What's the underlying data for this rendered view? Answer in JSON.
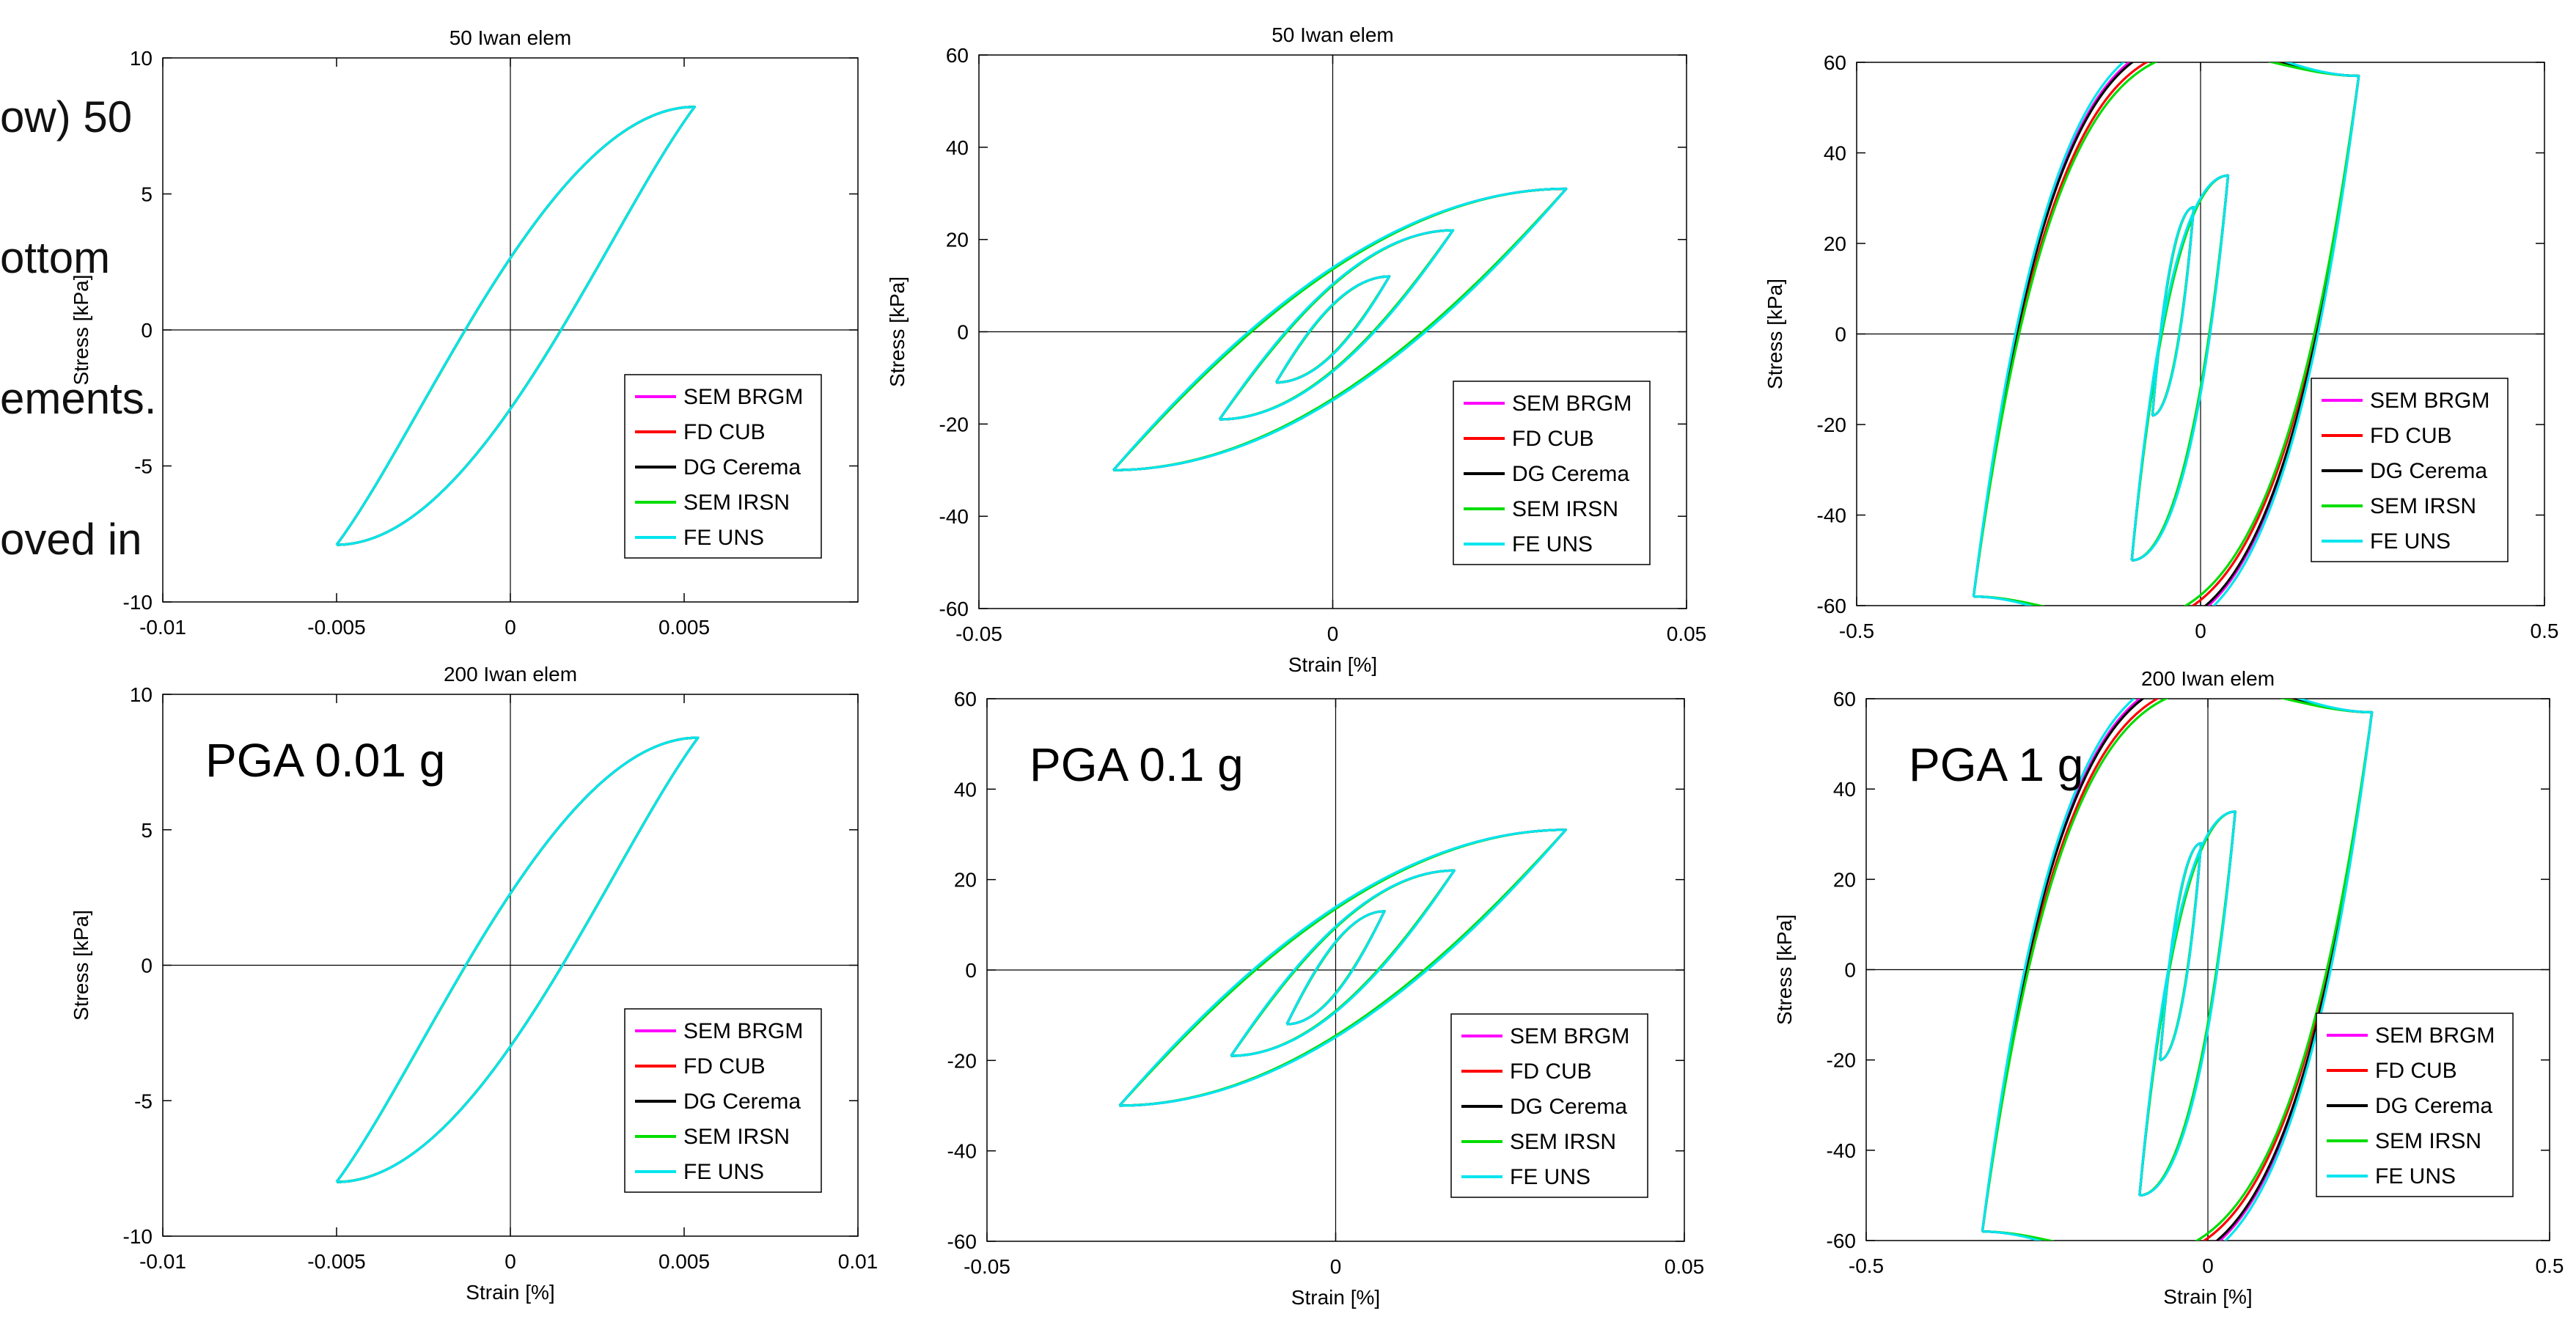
{
  "overlay_text": [
    "ow) 50",
    "ottom",
    "ements.",
    "oved in"
  ],
  "colors": {
    "SEM BRGM": "#ff00ff",
    "FD CUB": "#ff0000",
    "DG Cerema": "#000000",
    "SEM IRSN": "#00dd00",
    "FE UNS": "#00e5ee"
  },
  "legend_entries": [
    "SEM BRGM",
    "FD CUB",
    "DG Cerema",
    "SEM IRSN",
    "FE UNS"
  ],
  "chart_data": [
    {
      "id": "r1c1",
      "type": "line",
      "title": "50 Iwan elem",
      "xlabel": "",
      "ylabel": "Stress [kPa]",
      "annotation": "",
      "xlim": [
        -0.01,
        0.01
      ],
      "ylim": [
        -10,
        10
      ],
      "xticks": [
        -0.01,
        -0.005,
        0,
        0.005
      ],
      "xtick_labels": [
        "-0.01",
        "-0.005",
        "0",
        "0.005"
      ],
      "yticks": [
        -10,
        -5,
        0,
        5,
        10
      ],
      "ytick_labels": [
        "-10",
        "-5",
        "0",
        "5",
        "10"
      ],
      "grid": false,
      "legend_placement": "lower-right",
      "loops": [
        {
          "peak": [
            0.0053,
            8.2
          ],
          "trough": [
            -0.005,
            -7.9
          ],
          "bulge": 0.25
        }
      ]
    },
    {
      "id": "r1c2",
      "type": "line",
      "title": "50 Iwan elem",
      "xlabel": "Strain [%]",
      "ylabel": "Stress [kPa]",
      "annotation": "",
      "xlim": [
        -0.05,
        0.05
      ],
      "ylim": [
        -60,
        60
      ],
      "xticks": [
        -0.05,
        0,
        0.05
      ],
      "xtick_labels": [
        "-0.05",
        "0",
        "0.05"
      ],
      "yticks": [
        -60,
        -40,
        -20,
        0,
        20,
        40,
        60
      ],
      "ytick_labels": [
        "-60",
        "-40",
        "-20",
        "0",
        "20",
        "40",
        "60"
      ],
      "grid": false,
      "legend_placement": "lower-right",
      "loops": [
        {
          "peak": [
            0.033,
            31
          ],
          "trough": [
            -0.031,
            -30
          ],
          "bulge": 8
        },
        {
          "peak": [
            0.017,
            22
          ],
          "trough": [
            -0.016,
            -19
          ],
          "bulge": 5
        },
        {
          "peak": [
            0.008,
            12
          ],
          "trough": [
            -0.008,
            -11
          ],
          "bulge": 3
        }
      ]
    },
    {
      "id": "r1c3",
      "type": "line",
      "title": "",
      "xlabel": "",
      "ylabel": "Stress [kPa]",
      "annotation": "",
      "xlim": [
        -0.5,
        0.5
      ],
      "ylim": [
        -60,
        60
      ],
      "xticks": [
        -0.5,
        0,
        0.5
      ],
      "xtick_labels": [
        "-0.5",
        "0",
        "0.5"
      ],
      "yticks": [
        -60,
        -40,
        -20,
        0,
        20,
        40,
        60
      ],
      "ytick_labels": [
        "-60",
        "-40",
        "-20",
        "0",
        "20",
        "40",
        "60"
      ],
      "grid": false,
      "legend_placement": "lower-right",
      "loops": [
        {
          "peak": [
            0.23,
            57
          ],
          "trough": [
            -0.33,
            -58
          ],
          "bulge": 85
        },
        {
          "peak": [
            0.04,
            35
          ],
          "trough": [
            -0.1,
            -50
          ],
          "bulge": 22
        },
        {
          "peak": [
            -0.01,
            28
          ],
          "trough": [
            -0.07,
            -18
          ],
          "bulge": 10
        }
      ]
    },
    {
      "id": "r2c1",
      "type": "line",
      "title": "200 Iwan elem",
      "xlabel": "Strain [%]",
      "ylabel": "Stress [kPa]",
      "annotation": "PGA 0.01 g",
      "xlim": [
        -0.01,
        0.01
      ],
      "ylim": [
        -10,
        10
      ],
      "xticks": [
        -0.01,
        -0.005,
        0,
        0.005,
        0.01
      ],
      "xtick_labels": [
        "-0.01",
        "-0.005",
        "0",
        "0.005",
        "0.01"
      ],
      "yticks": [
        -10,
        -5,
        0,
        5,
        10
      ],
      "ytick_labels": [
        "-10",
        "-5",
        "0",
        "5",
        "10"
      ],
      "grid": false,
      "legend_placement": "lower-right",
      "loops": [
        {
          "peak": [
            0.0054,
            8.4
          ],
          "trough": [
            -0.005,
            -8
          ],
          "bulge": 0.25
        }
      ]
    },
    {
      "id": "r2c2",
      "type": "line",
      "title": "",
      "xlabel": "Strain [%]",
      "ylabel": "",
      "annotation": "PGA 0.1 g",
      "xlim": [
        -0.05,
        0.05
      ],
      "ylim": [
        -60,
        60
      ],
      "xticks": [
        -0.05,
        0,
        0.05
      ],
      "xtick_labels": [
        "-0.05",
        "0",
        "0.05"
      ],
      "yticks": [
        -60,
        -40,
        -20,
        0,
        20,
        40,
        60
      ],
      "ytick_labels": [
        "-60",
        "-40",
        "-20",
        "0",
        "20",
        "40",
        "60"
      ],
      "grid": false,
      "legend_placement": "lower-right",
      "loops": [
        {
          "peak": [
            0.033,
            31
          ],
          "trough": [
            -0.031,
            -30
          ],
          "bulge": 8
        },
        {
          "peak": [
            0.017,
            22
          ],
          "trough": [
            -0.015,
            -19
          ],
          "bulge": 5
        },
        {
          "peak": [
            0.007,
            13
          ],
          "trough": [
            -0.007,
            -12
          ],
          "bulge": 3
        }
      ]
    },
    {
      "id": "r2c3",
      "type": "line",
      "title": "200 Iwan elem",
      "xlabel": "Strain [%]",
      "ylabel": "Stress [kPa]",
      "annotation": "PGA 1 g",
      "xlim": [
        -0.5,
        0.5
      ],
      "ylim": [
        -60,
        60
      ],
      "xticks": [
        -0.5,
        0,
        0.5
      ],
      "xtick_labels": [
        "-0.5",
        "0",
        "0.5"
      ],
      "yticks": [
        -60,
        -40,
        -20,
        0,
        20,
        40,
        60
      ],
      "ytick_labels": [
        "-60",
        "-40",
        "-20",
        "0",
        "20",
        "40",
        "60"
      ],
      "grid": false,
      "legend_placement": "lower-right",
      "loops": [
        {
          "peak": [
            0.24,
            57
          ],
          "trough": [
            -0.33,
            -58
          ],
          "bulge": 85
        },
        {
          "peak": [
            0.04,
            35
          ],
          "trough": [
            -0.1,
            -50
          ],
          "bulge": 22
        },
        {
          "peak": [
            -0.01,
            28
          ],
          "trough": [
            -0.07,
            -20
          ],
          "bulge": 10
        }
      ]
    }
  ]
}
